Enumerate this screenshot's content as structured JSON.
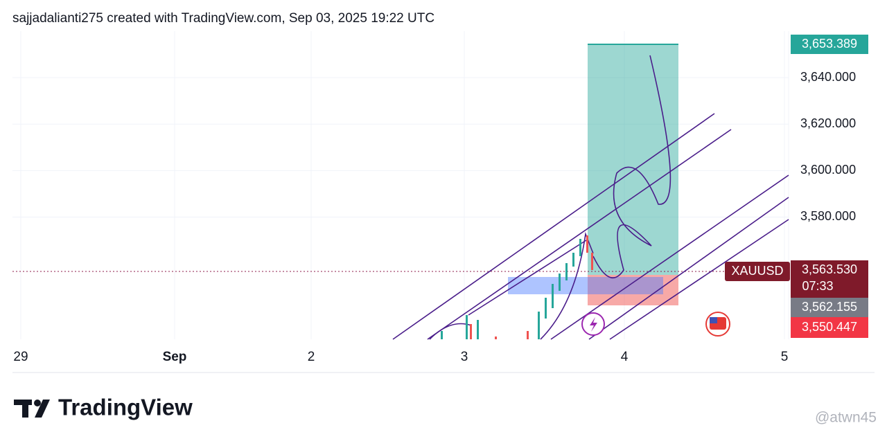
{
  "header": {
    "title": "sajjadalianti275 created with TradingView.com, Sep 03, 2025 19:22 UTC"
  },
  "price_axis": {
    "range": [
      3527.4,
      3660
    ],
    "ticks": [
      {
        "value": 3640,
        "label": "3,640.000"
      },
      {
        "value": 3620,
        "label": "3,620.000"
      },
      {
        "value": 3600,
        "label": "3,600.000"
      },
      {
        "value": 3580,
        "label": "3,580.000"
      }
    ]
  },
  "time_axis": {
    "labels": [
      "29",
      "Sep",
      "2",
      "3",
      "4",
      "5"
    ]
  },
  "badges": {
    "target": "3,653.389",
    "symbol": "XAUUSD",
    "last_price": "3,563.530",
    "countdown": "07:33",
    "stop": "3,562.155",
    "low": "3,550.447"
  },
  "footer": {
    "logo": "TradingView",
    "watermark": "@atwn45"
  }
}
